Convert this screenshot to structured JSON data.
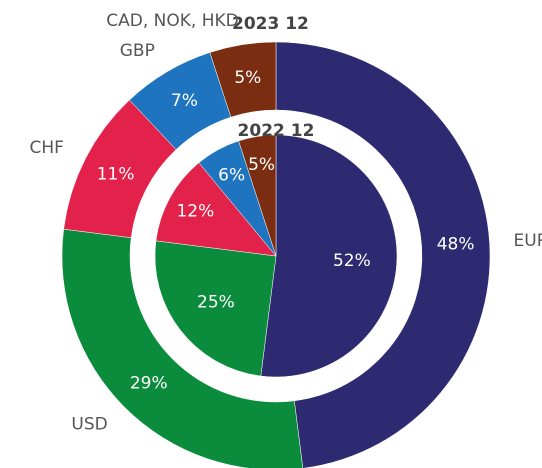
{
  "chart_data": {
    "type": "pie",
    "categories": [
      "EUR",
      "USD",
      "CHF",
      "GBP",
      "CAD, NOK, HKD"
    ],
    "colors": [
      "#2e2a72",
      "#0a8c3c",
      "#e3224b",
      "#1f74c0",
      "#7b2d12"
    ],
    "series": [
      {
        "name": "2023 12",
        "values": [
          48,
          29,
          11,
          7,
          5
        ],
        "value_labels": [
          "48%",
          "29%",
          "11%",
          "7%",
          "5%"
        ]
      },
      {
        "name": "2022 12",
        "values": [
          52,
          25,
          12,
          6,
          5
        ],
        "value_labels": [
          "52%",
          "25%",
          "12%",
          "6%",
          "5%"
        ]
      }
    ]
  }
}
